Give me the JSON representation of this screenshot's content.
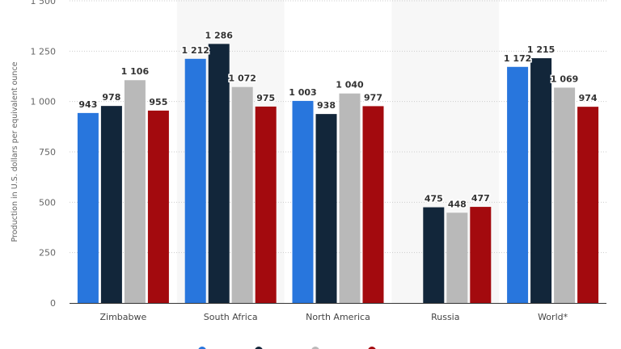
{
  "chart_data": {
    "type": "bar",
    "ylabel": "Production in U.S. dollars per equivalent ounce",
    "xlabel": "",
    "ylim": [
      0,
      1500
    ],
    "yticks": [
      0,
      250,
      500,
      750,
      1000,
      1250,
      1500
    ],
    "ytick_labels": [
      "0",
      "250",
      "500",
      "750",
      "1 000",
      "1 250",
      "1 500"
    ],
    "grid": true,
    "categories": [
      "Zimbabwe",
      "South Africa",
      "North America",
      "Russia",
      "World*"
    ],
    "series": [
      {
        "color": "#2876dd",
        "values": [
          943,
          1212,
          1003,
          null,
          1172
        ],
        "labels": [
          "943",
          "1 212",
          "1 003",
          "",
          "1 172"
        ]
      },
      {
        "color": "#12263a",
        "values": [
          978,
          1286,
          938,
          475,
          1215
        ],
        "labels": [
          "978",
          "1 286",
          "938",
          "475",
          "1 215"
        ]
      },
      {
        "color": "#b9b9b9",
        "values": [
          1106,
          1072,
          1040,
          448,
          1069
        ],
        "labels": [
          "1 106",
          "1 072",
          "1 040",
          "448",
          "1 069"
        ]
      },
      {
        "color": "#a30a0e",
        "values": [
          955,
          975,
          977,
          477,
          974
        ],
        "labels": [
          "955",
          "975",
          "977",
          "477",
          "974"
        ]
      }
    ],
    "legend_placement": "bottom"
  }
}
